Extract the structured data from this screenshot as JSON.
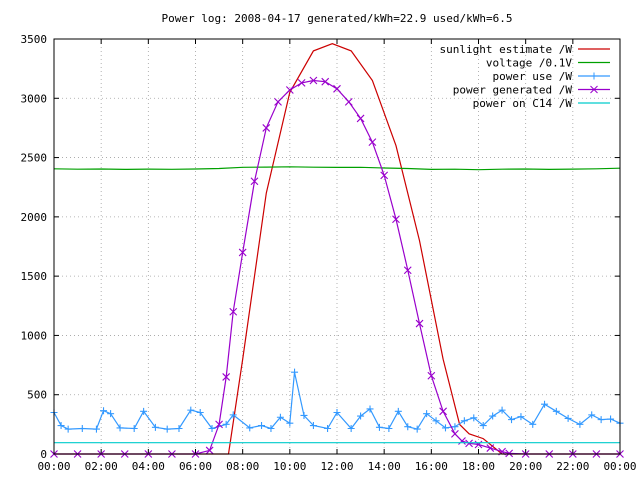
{
  "chart_data": {
    "type": "line",
    "title": "Power log: 2008-04-17 generated/kWh=22.9 used/kWh=6.5",
    "xlabel": "",
    "ylabel": "",
    "x_tick_labels": [
      "00:00",
      "02:00",
      "04:00",
      "06:00",
      "08:00",
      "10:00",
      "12:00",
      "14:00",
      "16:00",
      "18:00",
      "20:00",
      "22:00",
      "00:00"
    ],
    "x_range_hours": [
      0,
      24
    ],
    "ylim": [
      0,
      3500
    ],
    "y_ticks": [
      0,
      500,
      1000,
      1500,
      2000,
      2500,
      3000,
      3500
    ],
    "grid": true,
    "legend_position": "top-right",
    "series": [
      {
        "name": "sunlight estimate /W",
        "color": "#cc0000",
        "marker": "none",
        "hours": [
          0,
          7.4,
          8,
          9,
          10,
          11,
          11.8,
          12.6,
          13.5,
          14.5,
          15.5,
          16.5,
          17.2,
          17.6,
          18.2,
          19.0,
          24
        ],
        "values": [
          0,
          0,
          800,
          2200,
          3050,
          3400,
          3460,
          3400,
          3150,
          2600,
          1800,
          800,
          250,
          170,
          130,
          0,
          0
        ]
      },
      {
        "name": "voltage /0.1V",
        "color": "#00a000",
        "marker": "none",
        "hours": [
          0,
          1,
          2,
          3,
          4,
          5,
          6,
          7,
          8,
          9,
          10,
          11,
          12,
          13,
          14,
          15,
          16,
          17,
          18,
          19,
          20,
          21,
          22,
          23,
          24
        ],
        "values": [
          2405,
          2402,
          2404,
          2400,
          2403,
          2401,
          2404,
          2408,
          2418,
          2420,
          2422,
          2419,
          2417,
          2418,
          2412,
          2408,
          2400,
          2402,
          2398,
          2402,
          2404,
          2400,
          2403,
          2405,
          2410
        ]
      },
      {
        "name": "power use /W",
        "color": "#3399ff",
        "marker": "plus",
        "hours": [
          0,
          0.3,
          0.6,
          1.2,
          1.8,
          2.1,
          2.4,
          2.8,
          3.4,
          3.8,
          4.3,
          4.8,
          5.3,
          5.8,
          6.2,
          6.7,
          7.3,
          7.6,
          8.3,
          8.8,
          9.2,
          9.6,
          10.0,
          10.2,
          10.6,
          11.0,
          11.6,
          12.0,
          12.6,
          13.0,
          13.4,
          13.8,
          14.2,
          14.6,
          15.0,
          15.4,
          15.8,
          16.2,
          16.6,
          17.0,
          17.4,
          17.8,
          18.2,
          18.6,
          19.0,
          19.4,
          19.8,
          20.3,
          20.8,
          21.3,
          21.8,
          22.3,
          22.8,
          23.2,
          23.6,
          24
        ],
        "values": [
          350,
          240,
          210,
          215,
          210,
          365,
          340,
          220,
          215,
          360,
          225,
          210,
          215,
          370,
          350,
          215,
          250,
          330,
          220,
          240,
          215,
          310,
          260,
          690,
          325,
          240,
          215,
          350,
          215,
          320,
          380,
          225,
          215,
          360,
          230,
          210,
          340,
          280,
          220,
          230,
          280,
          305,
          240,
          320,
          370,
          290,
          315,
          250,
          420,
          360,
          300,
          250,
          330,
          290,
          295,
          260
        ]
      },
      {
        "name": "power generated /W",
        "color": "#9900cc",
        "marker": "cross",
        "hours": [
          0,
          1,
          2,
          3,
          4,
          5,
          6,
          6.6,
          7.0,
          7.3,
          7.6,
          8.0,
          8.5,
          9.0,
          9.5,
          10.0,
          10.5,
          11.0,
          11.5,
          12.0,
          12.5,
          13.0,
          13.5,
          14.0,
          14.5,
          15.0,
          15.5,
          16.0,
          16.5,
          17.0,
          17.3,
          17.6,
          18.0,
          18.5,
          19.0,
          19.3,
          20,
          21,
          22,
          23,
          24
        ],
        "values": [
          0,
          0,
          0,
          0,
          0,
          0,
          0,
          30,
          250,
          650,
          1200,
          1700,
          2300,
          2750,
          2970,
          3070,
          3130,
          3150,
          3140,
          3080,
          2970,
          2830,
          2630,
          2350,
          1980,
          1550,
          1100,
          660,
          360,
          170,
          110,
          90,
          80,
          50,
          20,
          5,
          0,
          0,
          0,
          0,
          0
        ]
      },
      {
        "name": "power on C14 /W",
        "color": "#00cccc",
        "marker": "none",
        "hours": [
          0,
          24
        ],
        "values": [
          95,
          95
        ]
      }
    ]
  }
}
